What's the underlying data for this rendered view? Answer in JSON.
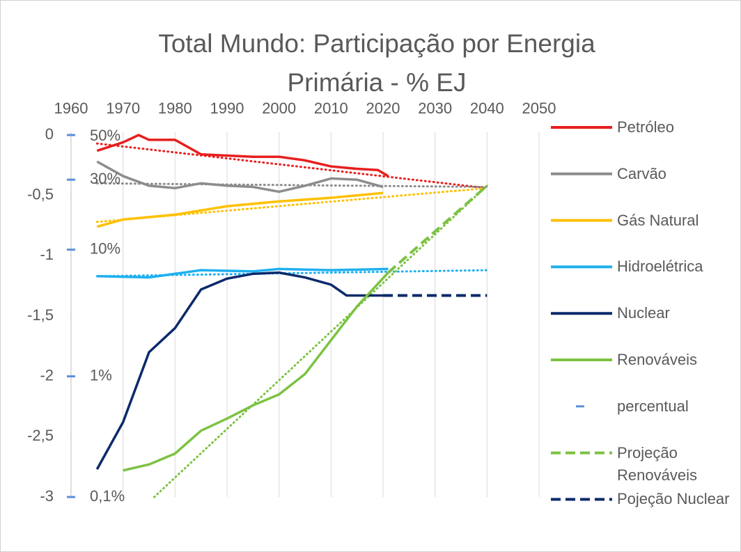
{
  "chart_data": {
    "type": "line",
    "title": "Total Mundo: Participação por Energia Primária - % EJ",
    "xlim": [
      1960,
      2050
    ],
    "xticks": [
      1960,
      1970,
      1980,
      1990,
      2000,
      2010,
      2020,
      2030,
      2040,
      2050
    ],
    "ylim": [
      -3,
      0
    ],
    "yticks": [
      0,
      {
        "value": -0.5,
        "label": "-0,5"
      },
      -1,
      {
        "value": -1.5,
        "label": "-1,5"
      },
      -2,
      {
        "value": -2.5,
        "label": "-2,5"
      },
      -3
    ],
    "grid": "x",
    "legend": "right",
    "series": [
      {
        "name": "Petróleo",
        "color": "#e81e1e",
        "style": "solid",
        "x": [
          1965,
          1970,
          1973,
          1975,
          1980,
          1985,
          1990,
          1995,
          2000,
          2005,
          2010,
          2015,
          2019,
          2021
        ],
        "values": [
          -0.13,
          -0.06,
          0,
          -0.04,
          -0.04,
          -0.16,
          -0.17,
          -0.18,
          -0.18,
          -0.21,
          -0.26,
          -0.28,
          -0.29,
          -0.34
        ]
      },
      {
        "name": "Carvão",
        "color": "#8c8c8c",
        "style": "solid",
        "x": [
          1965,
          1970,
          1975,
          1980,
          1985,
          1990,
          1995,
          2000,
          2005,
          2010,
          2015,
          2020
        ],
        "values": [
          -0.22,
          -0.34,
          -0.42,
          -0.44,
          -0.4,
          -0.42,
          -0.43,
          -0.47,
          -0.42,
          -0.36,
          -0.37,
          -0.43
        ]
      },
      {
        "name": "Gás Natural",
        "color": "#ffc000",
        "style": "solid",
        "x": [
          1965,
          1970,
          1980,
          1990,
          2000,
          2010,
          2020
        ],
        "values": [
          -0.76,
          -0.7,
          -0.66,
          -0.59,
          -0.55,
          -0.52,
          -0.48
        ]
      },
      {
        "name": "Hidroelétrica",
        "color": "#1fb0f0",
        "style": "solid",
        "x": [
          1965,
          1975,
          1985,
          1995,
          2000,
          2010,
          2021
        ],
        "values": [
          -1.17,
          -1.18,
          -1.12,
          -1.13,
          -1.11,
          -1.12,
          -1.11
        ]
      },
      {
        "name": "Nuclear",
        "color": "#0b2a6b",
        "style": "solid",
        "x": [
          1965,
          1970,
          1975,
          1980,
          1985,
          1990,
          1995,
          2000,
          2005,
          2010,
          2013,
          2020
        ],
        "values": [
          -2.77,
          -2.38,
          -1.8,
          -1.6,
          -1.28,
          -1.19,
          -1.15,
          -1.14,
          -1.18,
          -1.24,
          -1.33,
          -1.33
        ]
      },
      {
        "name": "Renováveis",
        "color": "#7cc242",
        "style": "solid",
        "x": [
          1970,
          1975,
          1980,
          1985,
          1990,
          1995,
          2000,
          2005,
          2010,
          2015,
          2021
        ],
        "values": [
          -2.78,
          -2.73,
          -2.64,
          -2.45,
          -2.35,
          -2.24,
          -2.15,
          -1.98,
          -1.7,
          -1.42,
          -1.14
        ]
      },
      {
        "name": "percentual",
        "color": "#5b8fd8",
        "style": "marker",
        "x": [
          1960,
          1960,
          1960,
          1960,
          1960
        ],
        "values": [
          0,
          -0.37,
          -0.95,
          -2,
          -3
        ],
        "labels": [
          "50%",
          "30%",
          "10%",
          "1%",
          "0,1%"
        ]
      },
      {
        "name": "Projeção Renováveis",
        "color": "#7cc242",
        "style": "dashed",
        "x": [
          2021,
          2040
        ],
        "values": [
          -1.14,
          -0.42
        ]
      },
      {
        "name": "Pojeção Nuclear",
        "color": "#0b2a6b",
        "style": "dashed",
        "x": [
          2020,
          2040
        ],
        "values": [
          -1.33,
          -1.33
        ]
      }
    ],
    "trendlines": [
      {
        "color": "#e81e1e",
        "x": [
          1965,
          2040
        ],
        "values": [
          -0.07,
          -0.44
        ]
      },
      {
        "color": "#8c8c8c",
        "x": [
          1965,
          2040
        ],
        "values": [
          -0.4,
          -0.43
        ]
      },
      {
        "color": "#ffc000",
        "x": [
          1965,
          2040
        ],
        "values": [
          -0.72,
          -0.44
        ]
      },
      {
        "color": "#1fb0f0",
        "x": [
          1965,
          2040
        ],
        "values": [
          -1.17,
          -1.12
        ]
      },
      {
        "color": "#7cc242",
        "x": [
          1976,
          2040
        ],
        "values": [
          -3,
          -0.42
        ]
      }
    ]
  }
}
